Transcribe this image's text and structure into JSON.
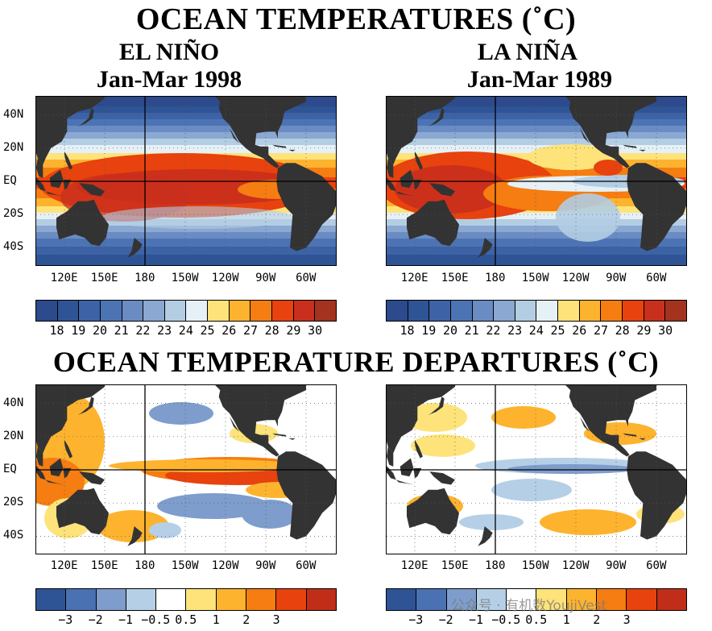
{
  "titles": {
    "top": "OCEAN TEMPERATURES (˚C)",
    "bottom": "OCEAN TEMPERATURE DEPARTURES (˚C)",
    "left_name": "EL NIÑO",
    "left_period": "Jan-Mar 1998",
    "right_name": "LA NIÑA",
    "right_period": "Jan-Mar 1989"
  },
  "lat_labels": [
    "40N",
    "20N",
    "EQ",
    "20S",
    "40S"
  ],
  "lon_labels": [
    "120E",
    "150E",
    "180",
    "150W",
    "120W",
    "90W",
    "60W"
  ],
  "sst_colorbar": {
    "colors": [
      "#2c4a8c",
      "#2f5496",
      "#3d62a6",
      "#4c74b4",
      "#6a8cc3",
      "#8aa8d2",
      "#b3cde3",
      "#e6f0f7",
      "#fde37a",
      "#fdb32e",
      "#f57d12",
      "#e8420e",
      "#c92f1d",
      "#a3321f"
    ],
    "labels": [
      "18",
      "19",
      "20",
      "21",
      "22",
      "23",
      "24",
      "25",
      "26",
      "27",
      "28",
      "29",
      "30"
    ]
  },
  "anom_colorbar": {
    "colors": [
      "#2f5496",
      "#4a72b3",
      "#7e9dcc",
      "#b5d0e6",
      "#ffffff",
      "#fde37a",
      "#fdb32e",
      "#f57d12",
      "#e8420e",
      "#c02e1a"
    ],
    "labels": [
      "−3",
      "−2",
      "−1",
      "−0.5",
      "0.5",
      "1",
      "2",
      "3"
    ]
  },
  "watermark": "公众号 · 有机数YoujiVest",
  "colors": {
    "land": "#333333",
    "background": "#ffffff"
  }
}
